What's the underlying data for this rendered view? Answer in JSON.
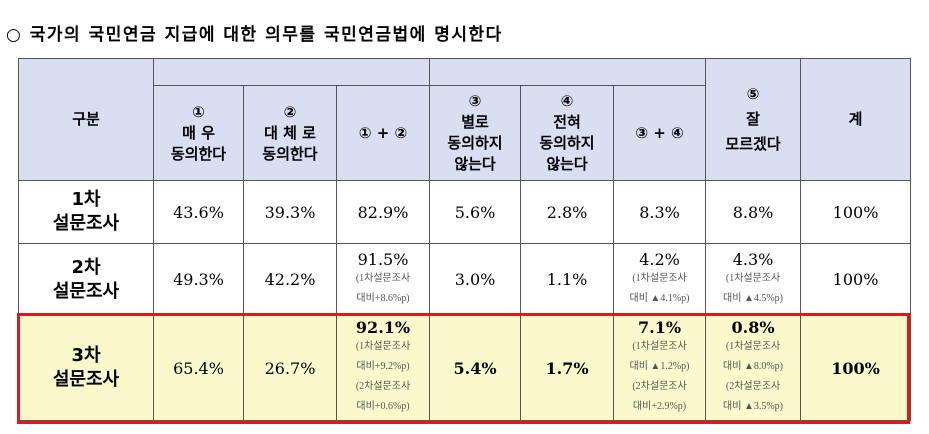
{
  "heading": "○ 국가의 국민연금 지급에 대한 의무를 국민연금법에 명시한다",
  "header": {
    "category": "구분",
    "col1": [
      "①",
      "매 우",
      "동의한다"
    ],
    "col2": [
      "②",
      "대 체 로",
      "동의한다"
    ],
    "sum12": "① + ②",
    "col3": [
      "③",
      "별로",
      "동의하지",
      "않는다"
    ],
    "col4": [
      "④",
      "전혀",
      "동의하지",
      "않는다"
    ],
    "sum34": "③ + ④",
    "col5": [
      "⑤",
      "잘",
      "모르겠다"
    ],
    "total": "계"
  },
  "rows": [
    {
      "label": [
        "1차",
        "설문조사"
      ],
      "c1": "43.6%",
      "c2": "39.3%",
      "s12": "82.9%",
      "s12_notes": [],
      "c3": "5.6%",
      "c4": "2.8%",
      "s34": "8.3%",
      "s34_notes": [],
      "c5": "8.8%",
      "c5_notes": [],
      "total": "100%"
    },
    {
      "label": [
        "2차",
        "설문조사"
      ],
      "c1": "49.3%",
      "c2": "42.2%",
      "s12": "91.5%",
      "s12_notes": [
        "(1차설문조사",
        "대비+8.6%p)"
      ],
      "c3": "3.0%",
      "c4": "1.1%",
      "s34": "4.2%",
      "s34_notes": [
        "(1차설문조사",
        "대비 ▲4.1%p)"
      ],
      "c5": "4.3%",
      "c5_notes": [
        "(1차설문조사",
        "대비 ▲4.5%p)"
      ],
      "total": "100%"
    },
    {
      "label": [
        "3차",
        "설문조사"
      ],
      "c1": "65.4%",
      "c2": "26.7%",
      "s12": "92.1%",
      "s12_notes": [
        "(1차설문조사",
        "대비+9.2%p)",
        "(2차설문조사",
        "대비+0.6%p)"
      ],
      "c3": "5.4%",
      "c4": "1.7%",
      "s34": "7.1%",
      "s34_notes": [
        "(1차설문조사",
        "대비 ▲1.2%p)",
        "(2차설문조사",
        "대비+2.9%p)"
      ],
      "c5": "0.8%",
      "c5_notes": [
        "(1차설문조사",
        "대비 ▲8.0%p)",
        "(2차설문조사",
        "대비 ▲3.5%p)"
      ],
      "total": "100%"
    }
  ],
  "highlight_color": "#e01a1a"
}
